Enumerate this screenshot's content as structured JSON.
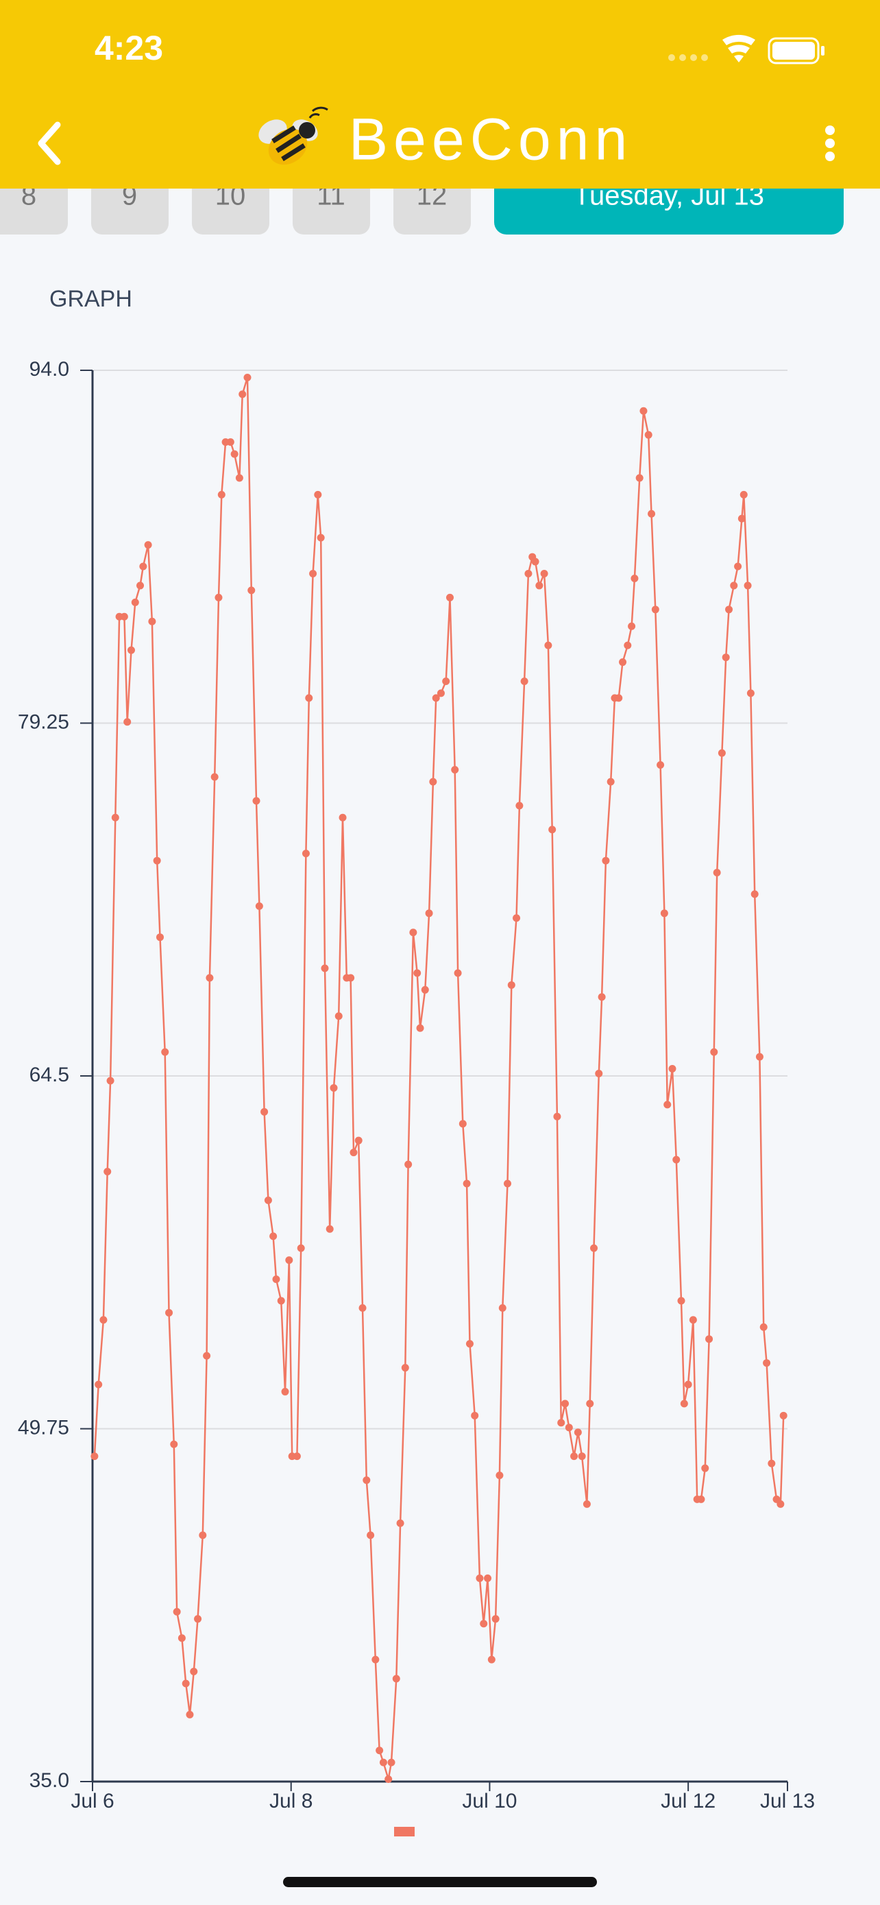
{
  "header": {
    "time": "4:23",
    "title": "BeeConn"
  },
  "date_tabs": [
    "8",
    "9",
    "10",
    "11",
    "12",
    "Tuesday, Jul 13"
  ],
  "section_title": "GRAPH",
  "chart_data": {
    "type": "line",
    "color": "#f07762",
    "xlim": [
      6,
      13
    ],
    "xticks": [
      {
        "value": 6,
        "label": "Jul 6"
      },
      {
        "value": 8,
        "label": "Jul 8"
      },
      {
        "value": 10,
        "label": "Jul 10"
      },
      {
        "value": 12,
        "label": "Jul 12"
      },
      {
        "value": 13,
        "label": "Jul 13"
      }
    ],
    "ylim": [
      35,
      94
    ],
    "yticks": [
      {
        "value": 35,
        "label": "35.0"
      },
      49.75,
      64.5,
      79.25,
      {
        "value": 94,
        "label": "94.0"
      }
    ],
    "grid": true,
    "x": [
      6.02,
      6.06,
      6.11,
      6.15,
      6.18,
      6.23,
      6.27,
      6.32,
      6.35,
      6.39,
      6.43,
      6.48,
      6.51,
      6.56,
      6.6,
      6.65,
      6.68,
      6.73,
      6.77,
      6.82,
      6.85,
      6.9,
      6.94,
      6.98,
      7.02,
      7.06,
      7.11,
      7.15,
      7.18,
      7.23,
      7.27,
      7.3,
      7.34,
      7.39,
      7.43,
      7.48,
      7.51,
      7.56,
      7.6,
      7.65,
      7.68,
      7.73,
      7.77,
      7.82,
      7.85,
      7.9,
      7.94,
      7.98,
      8.01,
      8.06,
      8.1,
      8.15,
      8.18,
      8.22,
      8.27,
      8.3,
      8.34,
      8.39,
      8.43,
      8.48,
      8.52,
      8.56,
      8.6,
      8.63,
      8.68,
      8.72,
      8.76,
      8.8,
      8.85,
      8.89,
      8.93,
      8.98,
      9.01,
      9.06,
      9.1,
      9.15,
      9.18,
      9.23,
      9.27,
      9.3,
      9.35,
      9.39,
      9.43,
      9.46,
      9.51,
      9.56,
      9.6,
      9.65,
      9.68,
      9.73,
      9.77,
      9.8,
      9.85,
      9.9,
      9.94,
      9.98,
      10.02,
      10.06,
      10.1,
      10.13,
      10.18,
      10.22,
      10.27,
      10.3,
      10.35,
      10.39,
      10.43,
      10.46,
      10.5,
      10.55,
      10.59,
      10.63,
      10.68,
      10.72,
      10.76,
      10.8,
      10.85,
      10.89,
      10.93,
      10.98,
      11.01,
      11.05,
      11.1,
      11.13,
      11.17,
      11.22,
      11.26,
      11.3,
      11.34,
      11.39,
      11.43,
      11.46,
      11.51,
      11.55,
      11.6,
      11.63,
      11.67,
      11.72,
      11.76,
      11.79,
      11.84,
      11.88,
      11.93,
      11.96,
      12.0,
      12.05,
      12.09,
      12.13,
      12.17,
      12.21,
      12.26,
      12.29,
      12.34,
      12.38,
      12.41,
      12.46,
      12.5,
      12.54,
      12.56,
      12.6,
      12.63,
      12.67,
      12.72,
      12.76,
      12.79,
      12.84,
      12.89,
      12.93,
      12.96
    ],
    "values": [
      48.6,
      51.6,
      54.3,
      60.5,
      64.3,
      75.3,
      83.7,
      83.7,
      79.3,
      82.3,
      84.3,
      85.0,
      85.8,
      86.7,
      83.5,
      73.5,
      70.3,
      65.5,
      54.6,
      49.1,
      42.1,
      41.0,
      39.1,
      37.8,
      39.6,
      41.8,
      45.3,
      52.8,
      68.6,
      77.0,
      84.5,
      88.8,
      91.0,
      91.0,
      90.5,
      89.5,
      93.0,
      93.7,
      84.8,
      76.0,
      71.6,
      63.0,
      59.3,
      57.8,
      56.0,
      55.1,
      51.3,
      56.8,
      48.6,
      48.6,
      57.3,
      73.8,
      80.3,
      85.5,
      88.8,
      87.0,
      69.0,
      58.1,
      64.0,
      67.0,
      75.3,
      68.6,
      68.6,
      61.3,
      61.8,
      54.8,
      47.6,
      45.3,
      40.1,
      36.3,
      35.8,
      35.1,
      35.8,
      39.3,
      45.8,
      52.3,
      60.8,
      70.5,
      68.8,
      66.5,
      68.1,
      71.3,
      76.8,
      80.3,
      80.5,
      81.0,
      84.5,
      77.3,
      68.8,
      62.5,
      60.0,
      53.3,
      50.3,
      43.5,
      41.6,
      43.5,
      40.1,
      41.8,
      47.8,
      54.8,
      60.0,
      68.3,
      71.1,
      75.8,
      81.0,
      85.5,
      86.2,
      86.0,
      85.0,
      85.5,
      82.5,
      74.8,
      62.8,
      50.0,
      50.8,
      49.8,
      48.6,
      49.6,
      48.6,
      46.6,
      50.8,
      57.3,
      64.6,
      67.8,
      73.5,
      76.8,
      80.3,
      80.3,
      81.8,
      82.5,
      83.3,
      85.3,
      89.5,
      92.3,
      91.3,
      88.0,
      84.0,
      77.5,
      71.3,
      63.3,
      64.8,
      61.0,
      55.1,
      50.8,
      51.6,
      54.3,
      46.8,
      46.8,
      48.1,
      53.5,
      65.5,
      73.0,
      78.0,
      82.0,
      84.0,
      85.0,
      85.8,
      87.8,
      88.8,
      85.0,
      80.5,
      72.1,
      65.3,
      54.0,
      52.5,
      48.3,
      46.8,
      46.6,
      50.3
    ]
  }
}
